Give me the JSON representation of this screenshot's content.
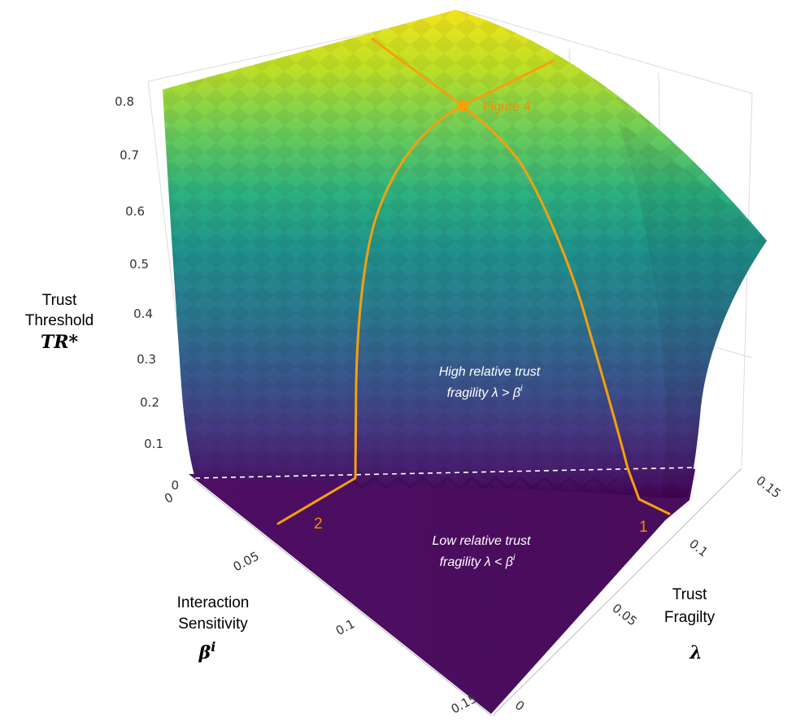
{
  "chart_data": {
    "type": "surface3d",
    "z_axis": {
      "title_lines": [
        "Trust",
        "Threshold"
      ],
      "symbol": "TR*",
      "ticks": [
        "0",
        "0.1",
        "0.2",
        "0.3",
        "0.4",
        "0.5",
        "0.6",
        "0.7",
        "0.8"
      ],
      "range": [
        0,
        0.8
      ]
    },
    "beta_axis": {
      "title_lines": [
        "Interaction",
        "Sensitivity"
      ],
      "symbol": "β",
      "symbol_sup": "i",
      "ticks": [
        "0",
        "0.05",
        "0.1",
        "0.15"
      ],
      "range": [
        0,
        0.15
      ]
    },
    "lambda_axis": {
      "title_lines": [
        "Trust",
        "Fragilty"
      ],
      "symbol": "λ",
      "ticks": [
        "0",
        "0.05",
        "0.1",
        "0.15"
      ],
      "range": [
        0,
        0.15
      ]
    },
    "annotations": {
      "high_line1": "High relative trust",
      "high_line2": "fragility λ > β",
      "high_sup": "i",
      "low_line1": "Low relative trust",
      "low_line2": "fragility λ < β",
      "low_sup": "i",
      "point_label": "Figure 4",
      "curve1_label": "1",
      "curve2_label": "2"
    },
    "colorscale": "viridis",
    "colors": {
      "curve": "#f5a00c",
      "label": "#f08c00",
      "floor": "#4e0e63",
      "axis": "#bbbbbb"
    }
  }
}
